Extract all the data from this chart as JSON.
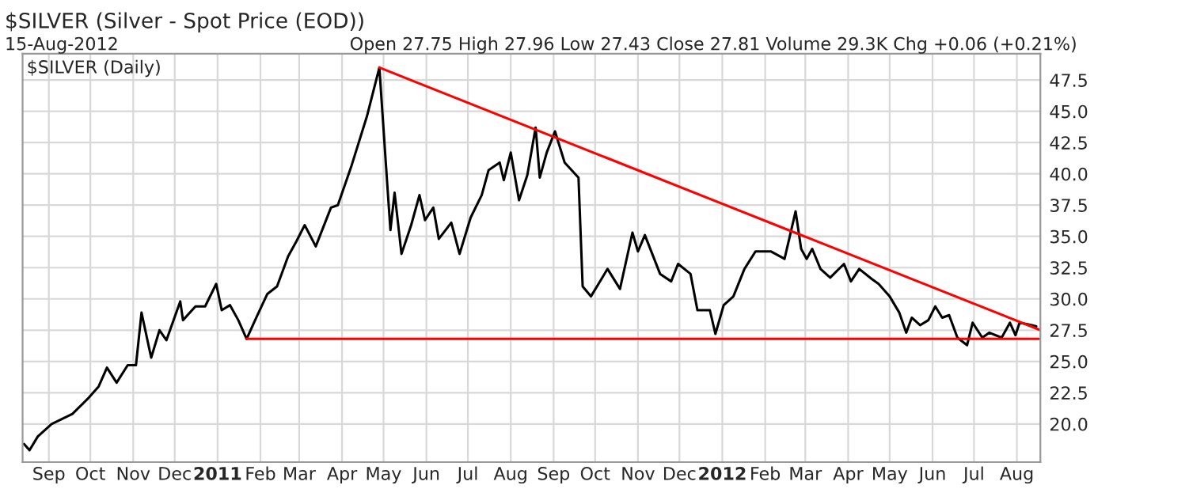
{
  "chart_data": {
    "type": "line",
    "title": "$SILVER (Silver - Spot Price (EOD))",
    "annotations": [
      "15-Aug-2012",
      "Open 27.75 High 27.96 Low 27.43 Close 27.81 Volume 29.3K Chg +0.06 (+0.21%)",
      "$SILVER (Daily)"
    ],
    "xlim": [
      "2010-08-13",
      "2012-08-18"
    ],
    "xticks": [
      {
        "value": "2010-09-01",
        "label": "Sep"
      },
      {
        "value": "2010-10-01",
        "label": "Oct"
      },
      {
        "value": "2010-11-01",
        "label": "Nov"
      },
      {
        "value": "2010-12-01",
        "label": "Dec"
      },
      {
        "value": "2011-01-01",
        "label": "2011"
      },
      {
        "value": "2011-02-01",
        "label": "Feb"
      },
      {
        "value": "2011-03-01",
        "label": "Mar"
      },
      {
        "value": "2011-04-01",
        "label": "Apr"
      },
      {
        "value": "2011-05-01",
        "label": "May"
      },
      {
        "value": "2011-06-01",
        "label": "Jun"
      },
      {
        "value": "2011-07-01",
        "label": "Jul"
      },
      {
        "value": "2011-08-01",
        "label": "Aug"
      },
      {
        "value": "2011-09-01",
        "label": "Sep"
      },
      {
        "value": "2011-10-01",
        "label": "Oct"
      },
      {
        "value": "2011-11-01",
        "label": "Nov"
      },
      {
        "value": "2011-12-01",
        "label": "Dec"
      },
      {
        "value": "2012-01-01",
        "label": "2012"
      },
      {
        "value": "2012-02-01",
        "label": "Feb"
      },
      {
        "value": "2012-03-01",
        "label": "Mar"
      },
      {
        "value": "2012-04-01",
        "label": "Apr"
      },
      {
        "value": "2012-05-01",
        "label": "May"
      },
      {
        "value": "2012-06-01",
        "label": "Jun"
      },
      {
        "value": "2012-07-01",
        "label": "Jul"
      },
      {
        "value": "2012-08-01",
        "label": "Aug"
      }
    ],
    "ylim": [
      16.95,
      49.6
    ],
    "yticks": [
      {
        "value": 20,
        "label": "20.0"
      },
      {
        "value": 22.5,
        "label": "22.5"
      },
      {
        "value": 25,
        "label": "25.0"
      },
      {
        "value": 27.5,
        "label": "27.5"
      },
      {
        "value": 30,
        "label": "30.0"
      },
      {
        "value": 32.5,
        "label": "32.5"
      },
      {
        "value": 35,
        "label": "35.0"
      },
      {
        "value": 37.5,
        "label": "37.5"
      },
      {
        "value": 40,
        "label": "40.0"
      },
      {
        "value": 42.5,
        "label": "42.5"
      },
      {
        "value": 45,
        "label": "45.0"
      },
      {
        "value": 47.5,
        "label": "47.5"
      }
    ],
    "grid": true,
    "legend": false,
    "marker": "none",
    "line_style": "solid",
    "series": [
      {
        "color": "#000000",
        "x": [
          "2010-08-14",
          "2010-08-18",
          "2010-08-24",
          "2010-09-03",
          "2010-09-18",
          "2010-09-29",
          "2010-10-07",
          "2010-10-13",
          "2010-10-20",
          "2010-10-28",
          "2010-11-03",
          "2010-11-07",
          "2010-11-14",
          "2010-11-20",
          "2010-11-25",
          "2010-12-05",
          "2010-12-07",
          "2010-12-16",
          "2010-12-23",
          "2010-12-31",
          "2011-01-04",
          "2011-01-10",
          "2011-01-16",
          "2011-01-22",
          "2011-01-29",
          "2011-02-06",
          "2011-02-13",
          "2011-02-21",
          "2011-02-27",
          "2011-03-05",
          "2011-03-13",
          "2011-03-24",
          "2011-03-29",
          "2011-04-08",
          "2011-04-19",
          "2011-04-28",
          "2011-05-04",
          "2011-05-06",
          "2011-05-09",
          "2011-05-14",
          "2011-05-21",
          "2011-05-27",
          "2011-05-31",
          "2011-06-06",
          "2011-06-10",
          "2011-06-19",
          "2011-06-25",
          "2011-07-03",
          "2011-07-11",
          "2011-07-16",
          "2011-07-24",
          "2011-07-27",
          "2011-08-01",
          "2011-08-07",
          "2011-08-13",
          "2011-08-19",
          "2011-08-22",
          "2011-08-27",
          "2011-09-02",
          "2011-09-09",
          "2011-09-19",
          "2011-09-22",
          "2011-09-28",
          "2011-10-10",
          "2011-10-19",
          "2011-10-28",
          "2011-11-01",
          "2011-11-06",
          "2011-11-17",
          "2011-11-25",
          "2011-11-30",
          "2011-12-09",
          "2011-12-14",
          "2011-12-23",
          "2011-12-27",
          "2012-01-02",
          "2012-01-09",
          "2012-01-17",
          "2012-01-25",
          "2012-02-05",
          "2012-02-15",
          "2012-02-23",
          "2012-02-27",
          "2012-03-02",
          "2012-03-06",
          "2012-03-12",
          "2012-03-19",
          "2012-03-29",
          "2012-04-03",
          "2012-04-09",
          "2012-04-18",
          "2012-04-23",
          "2012-05-01",
          "2012-05-08",
          "2012-05-13",
          "2012-05-17",
          "2012-05-23",
          "2012-05-29",
          "2012-06-03",
          "2012-06-08",
          "2012-06-13",
          "2012-06-19",
          "2012-06-26",
          "2012-06-30",
          "2012-07-07",
          "2012-07-12",
          "2012-07-21",
          "2012-07-27",
          "2012-07-31",
          "2012-08-03",
          "2012-08-12",
          "2012-08-15"
        ],
        "values": [
          18.4,
          17.9,
          19.0,
          20.0,
          20.8,
          22.0,
          23.0,
          24.5,
          23.3,
          24.7,
          24.7,
          28.9,
          25.3,
          27.5,
          26.7,
          29.8,
          28.3,
          29.4,
          29.4,
          31.2,
          29.1,
          29.5,
          28.3,
          26.8,
          28.5,
          30.4,
          31.0,
          33.4,
          34.6,
          35.9,
          34.2,
          37.3,
          37.5,
          40.7,
          44.6,
          48.5,
          38.7,
          35.5,
          38.5,
          33.6,
          35.9,
          38.3,
          36.3,
          37.3,
          34.8,
          36.1,
          33.6,
          36.5,
          38.3,
          40.3,
          40.9,
          39.5,
          41.7,
          37.9,
          39.9,
          43.7,
          39.7,
          41.7,
          43.4,
          40.9,
          39.7,
          31.0,
          30.2,
          32.4,
          30.8,
          35.3,
          33.8,
          35.1,
          32.0,
          31.4,
          32.8,
          32.0,
          29.1,
          29.1,
          27.2,
          29.5,
          30.2,
          32.4,
          33.8,
          33.8,
          33.2,
          37.0,
          34.0,
          33.2,
          34.0,
          32.4,
          31.7,
          32.8,
          31.4,
          32.4,
          31.6,
          31.2,
          30.2,
          28.9,
          27.3,
          28.5,
          27.9,
          28.3,
          29.4,
          28.5,
          28.7,
          26.9,
          26.3,
          28.1,
          26.9,
          27.3,
          26.9,
          28.1,
          27.1,
          28.1,
          27.9,
          27.8
        ]
      },
      {
        "color": "#ff0000",
        "x": [
          "2011-01-22",
          "2012-08-18"
        ],
        "values": [
          26.8,
          26.8
        ]
      },
      {
        "color": "#ff0000",
        "x": [
          "2011-04-28",
          "2012-08-18"
        ],
        "values": [
          48.5,
          27.5
        ]
      }
    ]
  }
}
